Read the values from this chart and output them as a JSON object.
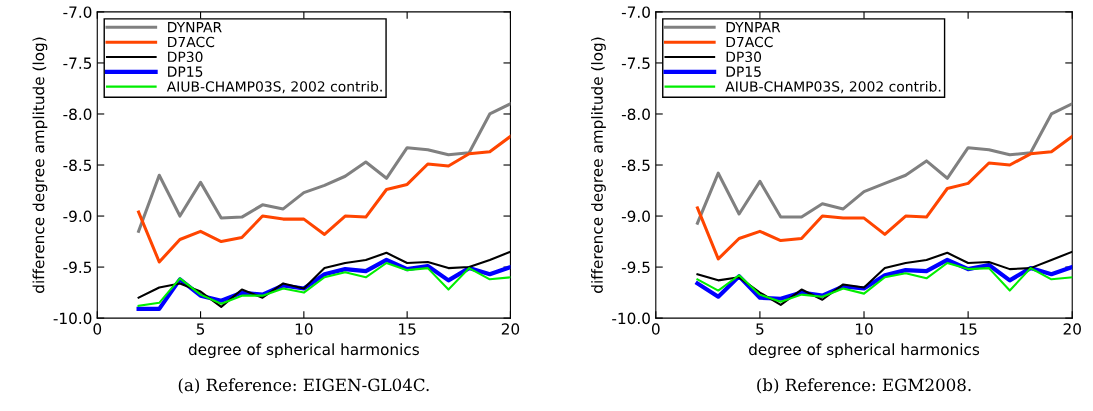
{
  "chart_data": [
    {
      "type": "line",
      "xlabel": "degree of spherical harmonics",
      "ylabel": "difference degree amplitude (log)",
      "xlim": [
        0,
        20
      ],
      "xticks": [
        0,
        5,
        10,
        15,
        20
      ],
      "ylim": [
        -10.0,
        -7.0
      ],
      "yticks": [
        {
          "value": -10.0,
          "label": "-10.0"
        },
        {
          "value": -9.5,
          "label": "-9.5"
        },
        {
          "value": -9.0,
          "label": "-9.0"
        },
        {
          "value": -8.5,
          "label": "-8.5"
        },
        {
          "value": -8.0,
          "label": "-8.0"
        },
        {
          "value": -7.5,
          "label": "-7.5"
        },
        {
          "value": -7.0,
          "label": "-7.0"
        }
      ],
      "grid": false,
      "legend": "top left",
      "annotations": [
        "(a) Reference: EIGEN-GL04C."
      ],
      "x": [
        2,
        3,
        4,
        5,
        6,
        7,
        8,
        9,
        10,
        11,
        12,
        13,
        14,
        15,
        16,
        17,
        18,
        19,
        20
      ],
      "series": [
        {
          "name": "DYNPAR",
          "color": "#808080",
          "values": [
            -9.15,
            -8.6,
            -9.0,
            -8.67,
            -9.02,
            -9.01,
            -8.89,
            -8.93,
            -8.77,
            -8.7,
            -8.61,
            -8.47,
            -8.63,
            -8.33,
            -8.35,
            -8.4,
            -8.38,
            -8.0,
            -7.9
          ]
        },
        {
          "name": "D7ACC",
          "color": "#ff4500",
          "values": [
            -8.96,
            -9.45,
            -9.23,
            -9.15,
            -9.25,
            -9.21,
            -9.0,
            -9.03,
            -9.03,
            -9.18,
            -9.0,
            -9.01,
            -8.74,
            -8.69,
            -8.49,
            -8.51,
            -8.39,
            -8.37,
            -8.22
          ]
        },
        {
          "name": "DP30",
          "color": "#000000",
          "values": [
            -9.8,
            -9.7,
            -9.66,
            -9.74,
            -9.89,
            -9.72,
            -9.8,
            -9.66,
            -9.71,
            -9.51,
            -9.46,
            -9.43,
            -9.36,
            -9.46,
            -9.45,
            -9.51,
            -9.5,
            -9.43,
            -9.35
          ]
        },
        {
          "name": "DP15",
          "color": "#0000ff",
          "values": [
            -9.91,
            -9.91,
            -9.62,
            -9.78,
            -9.83,
            -9.75,
            -9.77,
            -9.68,
            -9.71,
            -9.57,
            -9.52,
            -9.54,
            -9.43,
            -9.52,
            -9.49,
            -9.63,
            -9.51,
            -9.57,
            -9.5
          ]
        },
        {
          "name": "AIUB-CHAMP03S, 2002 contrib.",
          "color": "#00ee00",
          "values": [
            -9.88,
            -9.85,
            -9.61,
            -9.77,
            -9.86,
            -9.78,
            -9.78,
            -9.71,
            -9.75,
            -9.6,
            -9.55,
            -9.6,
            -9.46,
            -9.53,
            -9.51,
            -9.72,
            -9.51,
            -9.62,
            -9.6
          ]
        }
      ]
    },
    {
      "type": "line",
      "xlabel": "degree of spherical harmonics",
      "ylabel": "difference degree amplitude (log)",
      "xlim": [
        0,
        20
      ],
      "xticks": [
        0,
        5,
        10,
        15,
        20
      ],
      "ylim": [
        -10.0,
        -7.0
      ],
      "yticks": [
        {
          "value": -10.0,
          "label": "-10.0"
        },
        {
          "value": -9.5,
          "label": "-9.5"
        },
        {
          "value": -9.0,
          "label": "-9.0"
        },
        {
          "value": -8.5,
          "label": "-8.5"
        },
        {
          "value": -8.0,
          "label": "-8.0"
        },
        {
          "value": -7.5,
          "label": "-7.5"
        },
        {
          "value": -7.0,
          "label": "-7.0"
        }
      ],
      "grid": false,
      "legend": "top left",
      "annotations": [
        "(b) Reference: EGM2008."
      ],
      "x": [
        2,
        3,
        4,
        5,
        6,
        7,
        8,
        9,
        10,
        11,
        12,
        13,
        14,
        15,
        16,
        17,
        18,
        19,
        20
      ],
      "series": [
        {
          "name": "DYNPAR",
          "color": "#808080",
          "values": [
            -9.07,
            -8.58,
            -8.98,
            -8.66,
            -9.01,
            -9.01,
            -8.88,
            -8.93,
            -8.76,
            -8.68,
            -8.6,
            -8.46,
            -8.63,
            -8.33,
            -8.35,
            -8.4,
            -8.38,
            -8.0,
            -7.9
          ]
        },
        {
          "name": "D7ACC",
          "color": "#ff4500",
          "values": [
            -8.92,
            -9.42,
            -9.22,
            -9.15,
            -9.24,
            -9.22,
            -9.0,
            -9.02,
            -9.02,
            -9.18,
            -9.0,
            -9.01,
            -8.73,
            -8.68,
            -8.48,
            -8.5,
            -8.39,
            -8.37,
            -8.22
          ]
        },
        {
          "name": "DP30",
          "color": "#000000",
          "values": [
            -9.57,
            -9.63,
            -9.6,
            -9.75,
            -9.87,
            -9.72,
            -9.82,
            -9.67,
            -9.7,
            -9.51,
            -9.46,
            -9.43,
            -9.36,
            -9.46,
            -9.45,
            -9.52,
            -9.51,
            -9.43,
            -9.35
          ]
        },
        {
          "name": "DP15",
          "color": "#0000ff",
          "values": [
            -9.66,
            -9.79,
            -9.59,
            -9.8,
            -9.81,
            -9.75,
            -9.78,
            -9.69,
            -9.71,
            -9.58,
            -9.53,
            -9.54,
            -9.43,
            -9.52,
            -9.48,
            -9.63,
            -9.51,
            -9.57,
            -9.5
          ]
        },
        {
          "name": "AIUB-CHAMP03S, 2002 contrib.",
          "color": "#00ee00",
          "values": [
            -9.62,
            -9.73,
            -9.58,
            -9.77,
            -9.84,
            -9.77,
            -9.79,
            -9.71,
            -9.76,
            -9.6,
            -9.56,
            -9.61,
            -9.46,
            -9.52,
            -9.51,
            -9.73,
            -9.51,
            -9.62,
            -9.6
          ]
        }
      ]
    }
  ]
}
